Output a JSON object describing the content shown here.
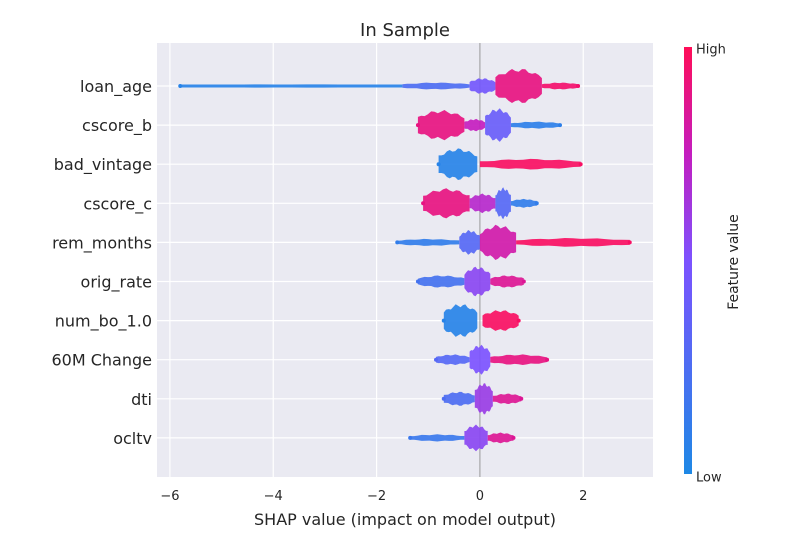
{
  "chart_data": {
    "type": "scatter",
    "subtype": "shap-beeswarm-summary",
    "title": "In Sample",
    "xlabel": "SHAP value (impact on model output)",
    "ylabel": "",
    "xlim": [
      -6.25,
      3.35
    ],
    "xticks": [
      -6,
      -4,
      -2,
      0,
      2
    ],
    "grid": true,
    "colorbar": {
      "title": "Feature value",
      "high_label": "High",
      "low_label": "Low",
      "low_color": "#1E88E5",
      "high_color": "#FF0D57"
    },
    "features": [
      {
        "name": "loan_age",
        "min": -5.8,
        "max": 1.9,
        "segments": [
          {
            "from": -5.8,
            "to": -1.5,
            "color": 0.05,
            "width": 0.05
          },
          {
            "from": -1.5,
            "to": -0.2,
            "color": 0.25,
            "width": 0.2
          },
          {
            "from": -0.2,
            "to": 0.3,
            "color": 0.45,
            "width": 0.45
          },
          {
            "from": 0.3,
            "to": 1.2,
            "color": 0.9,
            "width": 1.0
          },
          {
            "from": 1.2,
            "to": 1.9,
            "color": 0.95,
            "width": 0.2
          }
        ]
      },
      {
        "name": "cscore_b",
        "min": -1.2,
        "max": 1.55,
        "segments": [
          {
            "from": -1.2,
            "to": -0.3,
            "color": 0.9,
            "width": 0.85
          },
          {
            "from": -0.3,
            "to": 0.1,
            "color": 0.75,
            "width": 0.35
          },
          {
            "from": 0.1,
            "to": 0.6,
            "color": 0.4,
            "width": 0.95
          },
          {
            "from": 0.6,
            "to": 1.55,
            "color": 0.08,
            "width": 0.2
          }
        ]
      },
      {
        "name": "bad_vintage",
        "min": -0.8,
        "max": 1.95,
        "segments": [
          {
            "from": -0.8,
            "to": -0.05,
            "color": 0.05,
            "width": 0.9
          },
          {
            "from": 0.0,
            "to": 1.95,
            "color": 0.97,
            "width": 0.3
          }
        ]
      },
      {
        "name": "cscore_c",
        "min": -1.1,
        "max": 1.1,
        "segments": [
          {
            "from": -1.1,
            "to": -0.2,
            "color": 0.9,
            "width": 0.85
          },
          {
            "from": -0.2,
            "to": 0.3,
            "color": 0.7,
            "width": 0.55
          },
          {
            "from": 0.3,
            "to": 0.6,
            "color": 0.3,
            "width": 0.9
          },
          {
            "from": 0.6,
            "to": 1.1,
            "color": 0.1,
            "width": 0.25
          }
        ]
      },
      {
        "name": "rem_months",
        "min": -1.6,
        "max": 2.9,
        "segments": [
          {
            "from": -1.6,
            "to": -0.4,
            "color": 0.1,
            "width": 0.2
          },
          {
            "from": -0.4,
            "to": 0.0,
            "color": 0.3,
            "width": 0.7
          },
          {
            "from": 0.0,
            "to": 0.7,
            "color": 0.8,
            "width": 1.0
          },
          {
            "from": 0.7,
            "to": 2.9,
            "color": 0.97,
            "width": 0.25
          }
        ]
      },
      {
        "name": "orig_rate",
        "min": -1.2,
        "max": 0.85,
        "segments": [
          {
            "from": -1.2,
            "to": -0.3,
            "color": 0.2,
            "width": 0.35
          },
          {
            "from": -0.3,
            "to": 0.2,
            "color": 0.55,
            "width": 0.85
          },
          {
            "from": 0.2,
            "to": 0.85,
            "color": 0.85,
            "width": 0.35
          }
        ]
      },
      {
        "name": "num_bo_1.0",
        "min": -0.7,
        "max": 0.75,
        "segments": [
          {
            "from": -0.7,
            "to": -0.05,
            "color": 0.05,
            "width": 0.95
          },
          {
            "from": 0.05,
            "to": 0.75,
            "color": 0.97,
            "width": 0.6
          }
        ]
      },
      {
        "name": "60M Change",
        "min": -0.85,
        "max": 1.3,
        "segments": [
          {
            "from": -0.85,
            "to": -0.2,
            "color": 0.3,
            "width": 0.3
          },
          {
            "from": -0.2,
            "to": 0.2,
            "color": 0.5,
            "width": 0.85
          },
          {
            "from": 0.2,
            "to": 1.3,
            "color": 0.9,
            "width": 0.3
          }
        ]
      },
      {
        "name": "dti",
        "min": -0.7,
        "max": 0.8,
        "segments": [
          {
            "from": -0.7,
            "to": -0.1,
            "color": 0.25,
            "width": 0.4
          },
          {
            "from": -0.1,
            "to": 0.25,
            "color": 0.6,
            "width": 0.9
          },
          {
            "from": 0.25,
            "to": 0.8,
            "color": 0.85,
            "width": 0.3
          }
        ]
      },
      {
        "name": "ocltv",
        "min": -1.35,
        "max": 0.65,
        "segments": [
          {
            "from": -1.35,
            "to": -0.3,
            "color": 0.15,
            "width": 0.2
          },
          {
            "from": -0.3,
            "to": 0.15,
            "color": 0.55,
            "width": 0.75
          },
          {
            "from": 0.15,
            "to": 0.65,
            "color": 0.85,
            "width": 0.3
          }
        ]
      }
    ]
  }
}
